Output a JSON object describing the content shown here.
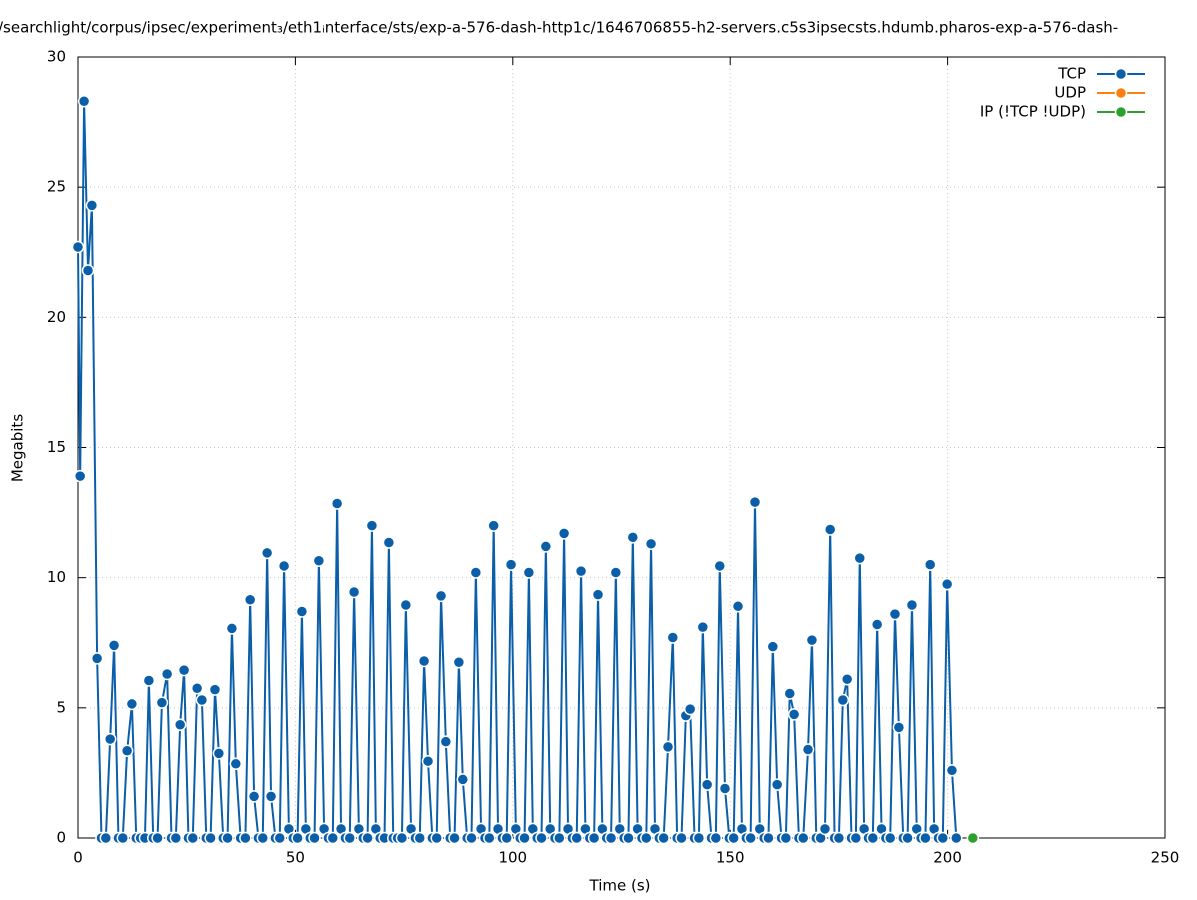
{
  "chart_data": {
    "type": "line",
    "title": "/searchlight/corpus/ipsec/experiment₃/eth1ᵢnterface/sts/exp-a-576-dash-http1c/1646706855-h2-servers.c5s3ipsecsts.hdumb.pharos-exp-a-576-dash-",
    "xlabel": "Time (s)",
    "ylabel": "Megabits",
    "xlim": [
      0,
      250
    ],
    "ylim": [
      0,
      30
    ],
    "xticks": [
      0,
      50,
      100,
      150,
      200,
      250
    ],
    "yticks": [
      0,
      5,
      10,
      15,
      20,
      25,
      30
    ],
    "grid": true,
    "legend": "top-right",
    "series": [
      {
        "name": "TCP",
        "color": "#0b5ea8",
        "x": [
          0,
          0.5,
          1.4,
          2.3,
          3.2,
          4.4,
          5.4,
          6.4,
          7.4,
          8.3,
          9.3,
          10.3,
          11.3,
          12.4,
          13.4,
          14.4,
          15.4,
          16.3,
          17.3,
          18.3,
          19.3,
          20.5,
          21.5,
          22.5,
          23.5,
          24.4,
          25.4,
          26.4,
          27.4,
          28.5,
          29.5,
          30.5,
          31.5,
          32.4,
          33.4,
          34.4,
          35.4,
          36.3,
          37.4,
          38.5,
          39.6,
          40.5,
          41.5,
          42.5,
          43.5,
          44.4,
          45.4,
          46.4,
          47.4,
          48.5,
          49.5,
          50.5,
          51.5,
          52.4,
          53.4,
          54.4,
          55.4,
          56.6,
          57.6,
          58.6,
          59.6,
          60.5,
          61.5,
          62.5,
          63.5,
          64.6,
          65.6,
          66.6,
          67.6,
          68.5,
          69.5,
          70.5,
          71.5,
          72.5,
          73.5,
          74.5,
          75.4,
          76.6,
          77.6,
          78.6,
          79.6,
          80.5,
          81.5,
          82.5,
          83.5,
          84.6,
          85.6,
          86.6,
          87.6,
          88.5,
          89.5,
          90.5,
          91.5,
          92.7,
          93.6,
          94.6,
          95.6,
          96.6,
          97.6,
          98.6,
          99.6,
          100.7,
          101.7,
          102.7,
          103.7,
          104.6,
          105.6,
          106.6,
          107.6,
          108.6,
          109.7,
          110.7,
          111.8,
          112.7,
          113.7,
          114.7,
          115.7,
          116.7,
          117.7,
          118.7,
          119.6,
          120.6,
          121.6,
          122.6,
          123.7,
          124.6,
          125.6,
          126.6,
          127.6,
          128.7,
          129.7,
          130.7,
          131.8,
          132.7,
          133.7,
          134.7,
          135.7,
          136.8,
          137.8,
          138.8,
          139.8,
          140.8,
          141.8,
          142.8,
          143.7,
          144.7,
          145.7,
          146.7,
          147.6,
          148.8,
          149.8,
          150.8,
          151.8,
          152.7,
          153.7,
          154.7,
          155.7,
          156.8,
          157.8,
          158.8,
          159.8,
          160.8,
          161.8,
          162.8,
          163.7,
          164.7,
          165.8,
          166.8,
          167.9,
          168.8,
          169.8,
          170.8,
          171.8,
          173.0,
          174.0,
          175.0,
          175.9,
          176.9,
          177.9,
          178.9,
          179.8,
          180.8,
          181.8,
          182.8,
          183.8,
          184.8,
          185.8,
          186.8,
          187.9,
          188.8,
          189.8,
          190.8,
          191.8,
          192.9,
          193.9,
          194.9,
          196.0,
          196.9,
          197.9,
          198.9,
          199.9,
          201.0,
          202.0
        ],
        "values": [
          22.7,
          13.9,
          28.3,
          21.8,
          24.3,
          6.9,
          0,
          0,
          3.8,
          7.4,
          0,
          0,
          3.35,
          5.15,
          0,
          0,
          0,
          6.05,
          0,
          0,
          5.2,
          6.3,
          0,
          0,
          4.35,
          6.45,
          0,
          0,
          5.75,
          5.3,
          0,
          0,
          5.7,
          3.25,
          0,
          0,
          8.05,
          2.85,
          0,
          0,
          9.15,
          1.6,
          0,
          0,
          10.95,
          1.6,
          0,
          0,
          10.45,
          0.35,
          0,
          0,
          8.7,
          0.35,
          0,
          0,
          10.65,
          0.35,
          0,
          0,
          12.85,
          0.35,
          0,
          0,
          9.45,
          0.35,
          0,
          0,
          12.0,
          0.35,
          0,
          0,
          11.35,
          0,
          0,
          0,
          8.95,
          0.35,
          0,
          0,
          6.8,
          2.95,
          0,
          0,
          9.3,
          3.7,
          0,
          0,
          6.75,
          2.25,
          0,
          0,
          10.2,
          0.35,
          0,
          0,
          12.0,
          0.35,
          0,
          0,
          10.5,
          0.35,
          0,
          0,
          10.2,
          0.35,
          0,
          0,
          11.2,
          0.35,
          0,
          0,
          11.7,
          0.35,
          0,
          0,
          10.25,
          0.35,
          0,
          0,
          9.35,
          0.35,
          0,
          0,
          10.2,
          0.35,
          0,
          0,
          11.55,
          0.35,
          0,
          0,
          11.3,
          0.35,
          0,
          0,
          3.5,
          7.7,
          0,
          0,
          4.7,
          4.95,
          0,
          0,
          8.1,
          2.05,
          0,
          0,
          10.45,
          1.9,
          0,
          0,
          8.9,
          0.35,
          0,
          0,
          12.9,
          0.35,
          0,
          0,
          7.35,
          2.05,
          0,
          0,
          5.55,
          4.75,
          0,
          0,
          3.4,
          7.6,
          0,
          0,
          0.35,
          11.85,
          0,
          0,
          5.3,
          6.1,
          0,
          0,
          10.75,
          0.35,
          0,
          0,
          8.2,
          0.35,
          0,
          0,
          8.6,
          4.25,
          0,
          0,
          8.95,
          0.35,
          0,
          0,
          10.5,
          0.35,
          0,
          0,
          9.75,
          2.6,
          0
        ]
      },
      {
        "name": "UDP",
        "color": "#ff7f0e",
        "x": [],
        "values": []
      },
      {
        "name": "IP (!TCP  !UDP)",
        "color": "#2ca02c",
        "x": [
          205.8
        ],
        "values": [
          0
        ]
      }
    ]
  }
}
